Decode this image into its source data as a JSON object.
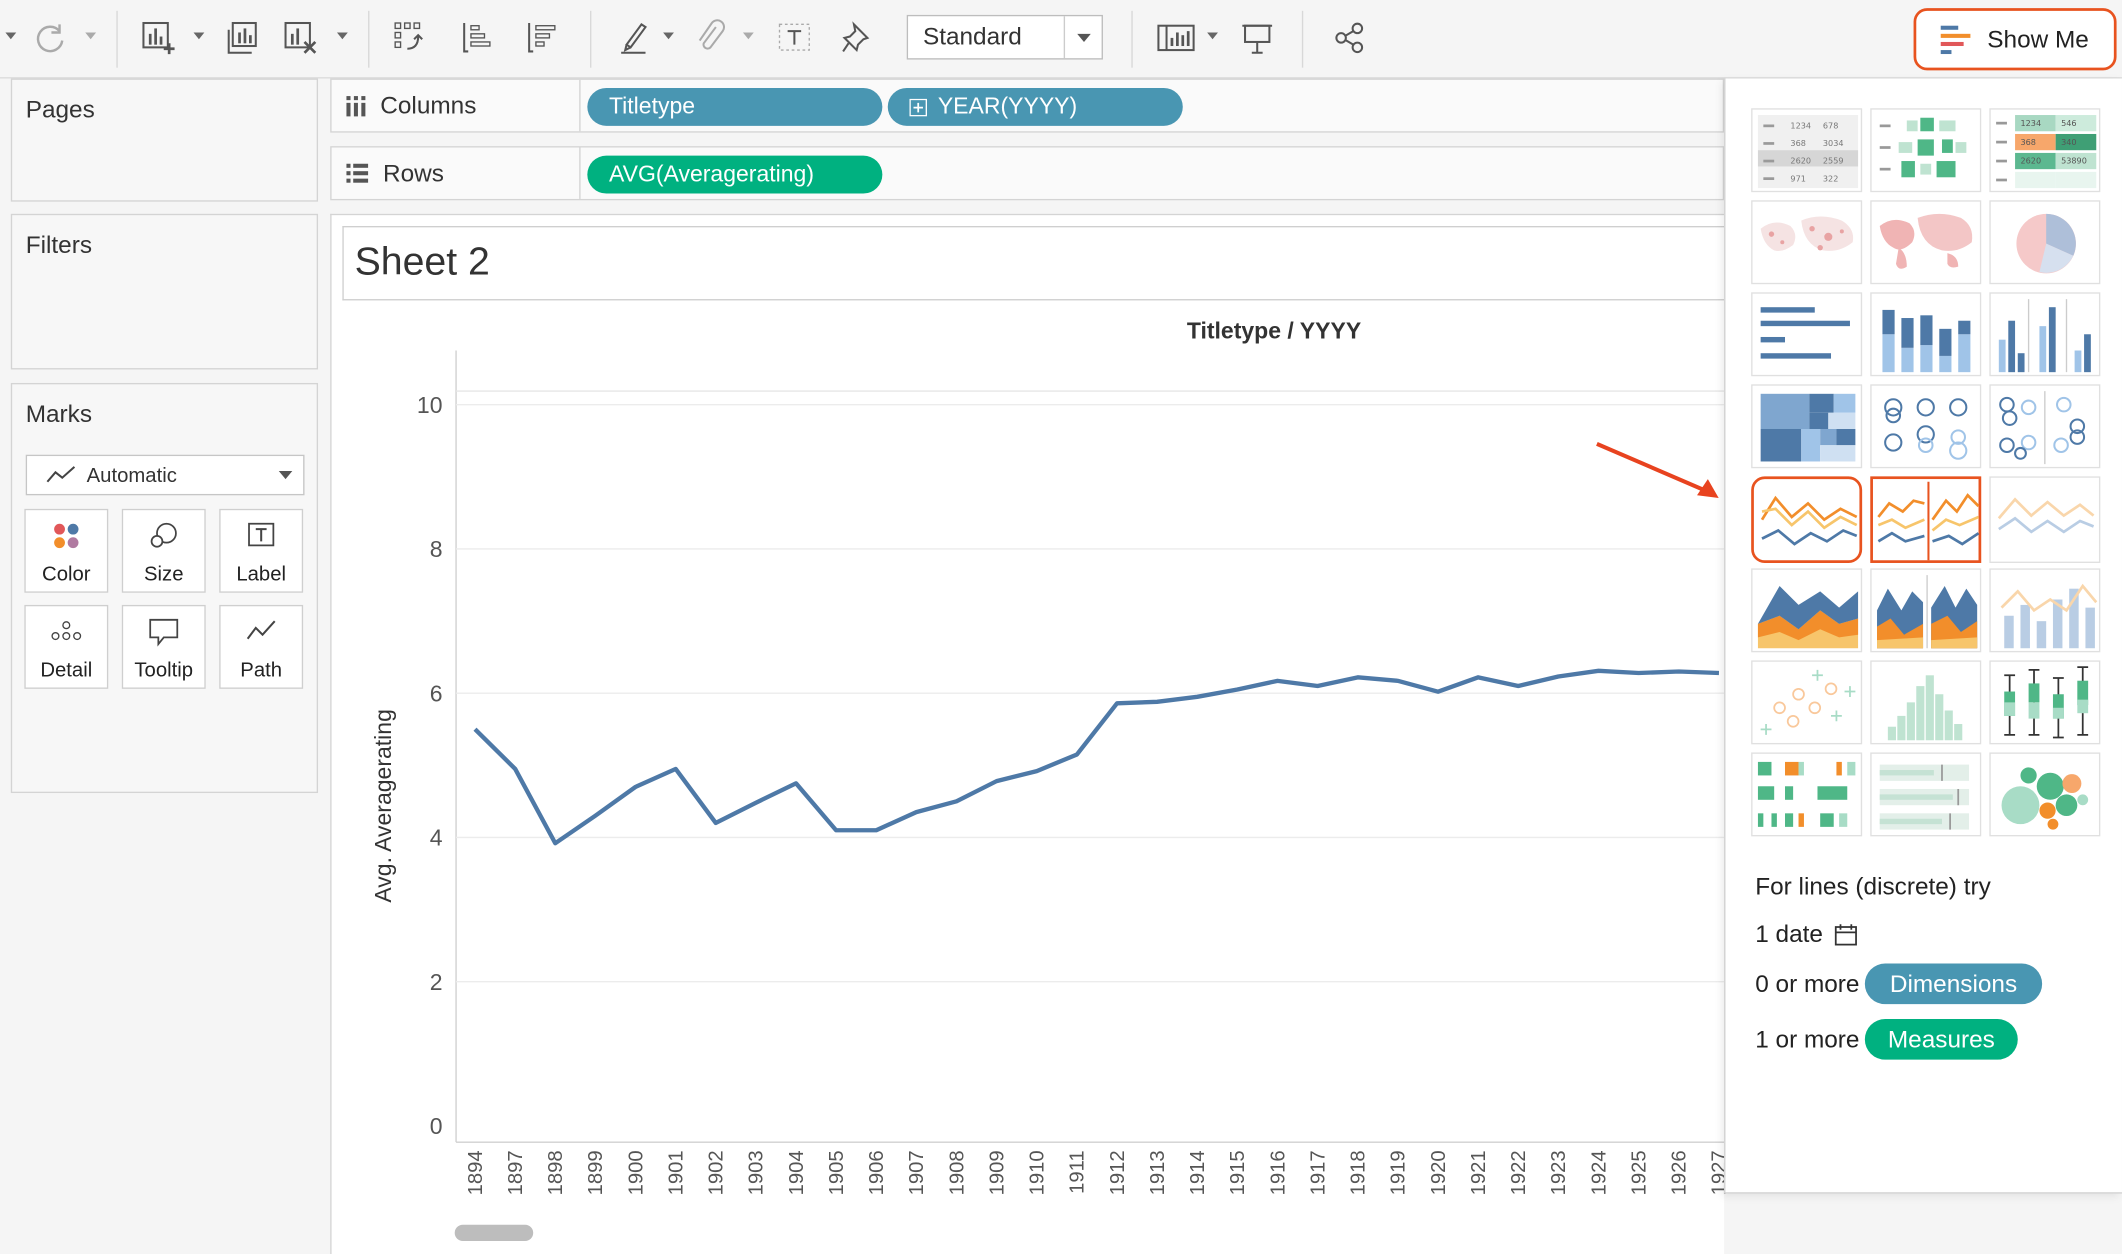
{
  "toolbar": {
    "view_mode": "Standard",
    "show_me_label": "Show Me"
  },
  "panels": {
    "pages_title": "Pages",
    "filters_title": "Filters",
    "marks_title": "Marks",
    "mark_type": "Automatic",
    "mark_buttons": [
      "Color",
      "Size",
      "Label",
      "Detail",
      "Tooltip",
      "Path"
    ]
  },
  "shelves": {
    "columns_label": "Columns",
    "rows_label": "Rows",
    "columns_pills": [
      "Titletype",
      "YEAR(YYYY)"
    ],
    "rows_pills": [
      "AVG(Averagerating)"
    ]
  },
  "sheet": {
    "title": "Sheet 2",
    "header": "Titletype / YYYY"
  },
  "chart_data": {
    "type": "line",
    "ylabel": "Avg. Averagerating",
    "ylim": [
      0,
      10
    ],
    "yticks": [
      0,
      2,
      4,
      6,
      8,
      10
    ],
    "categories": [
      "1894",
      "1897",
      "1898",
      "1899",
      "1900",
      "1901",
      "1902",
      "1903",
      "1904",
      "1905",
      "1906",
      "1907",
      "1908",
      "1909",
      "1910",
      "1911",
      "1912",
      "1913",
      "1914",
      "1915",
      "1916",
      "1917",
      "1918",
      "1919",
      "1920",
      "1921",
      "1922",
      "1923",
      "1924",
      "1925",
      "1926",
      "1927"
    ],
    "series": [
      {
        "color": "#4e79a7",
        "values": [
          5.5,
          4.95,
          3.92,
          4.3,
          4.7,
          4.95,
          4.2,
          4.48,
          4.75,
          4.1,
          4.1,
          4.35,
          4.5,
          4.78,
          4.92,
          5.15,
          5.86,
          5.88,
          5.95,
          6.05,
          6.17,
          6.1,
          6.22,
          6.17,
          6.02,
          6.22,
          6.1,
          6.23,
          6.31,
          6.28,
          6.3,
          6.28
        ]
      }
    ]
  },
  "show_me": {
    "hint_title": "For lines (discrete) try",
    "req_date": "1 date",
    "req_dims_prefix": "0 or more",
    "req_dims_pill": "Dimensions",
    "req_meas_prefix": "1 or more",
    "req_meas_pill": "Measures"
  },
  "colors": {
    "dimension": "#4996b2",
    "measure": "#00b180",
    "highlight": "#e8531f"
  }
}
